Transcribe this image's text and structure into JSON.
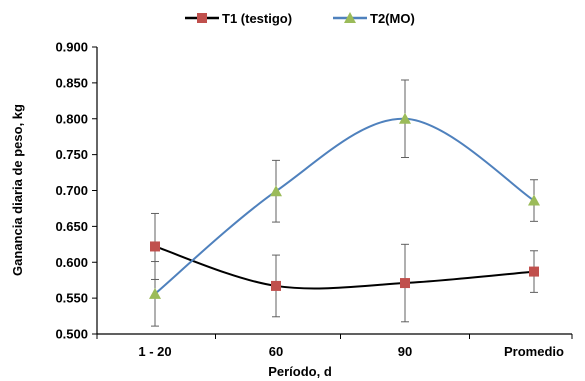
{
  "chart_data": {
    "type": "line",
    "title": "",
    "xlabel": "Período, d",
    "ylabel": "Ganancia diaria de peso, kg",
    "categories": [
      "1 - 20",
      "60",
      "90",
      "Promedio"
    ],
    "ylim": [
      0.5,
      0.9
    ],
    "yticks": [
      "0.500",
      "0.550",
      "0.600",
      "0.650",
      "0.700",
      "0.750",
      "0.800",
      "0.850",
      "0.900"
    ],
    "grid": false,
    "legend_position": "top-center",
    "smooth": true,
    "series": [
      {
        "name": "T1 (testigo)",
        "color": "#000000",
        "marker": "square",
        "marker_color": "#c0504d",
        "values": [
          0.622,
          0.567,
          0.571,
          0.587
        ],
        "error": [
          0.046,
          0.043,
          0.054,
          0.029
        ]
      },
      {
        "name": "T2(MO)",
        "color": "#4f81bd",
        "marker": "triangle",
        "marker_color": "#9bbb59",
        "values": [
          0.556,
          0.699,
          0.8,
          0.686
        ],
        "error": [
          0.045,
          0.043,
          0.054,
          0.029
        ]
      }
    ]
  }
}
